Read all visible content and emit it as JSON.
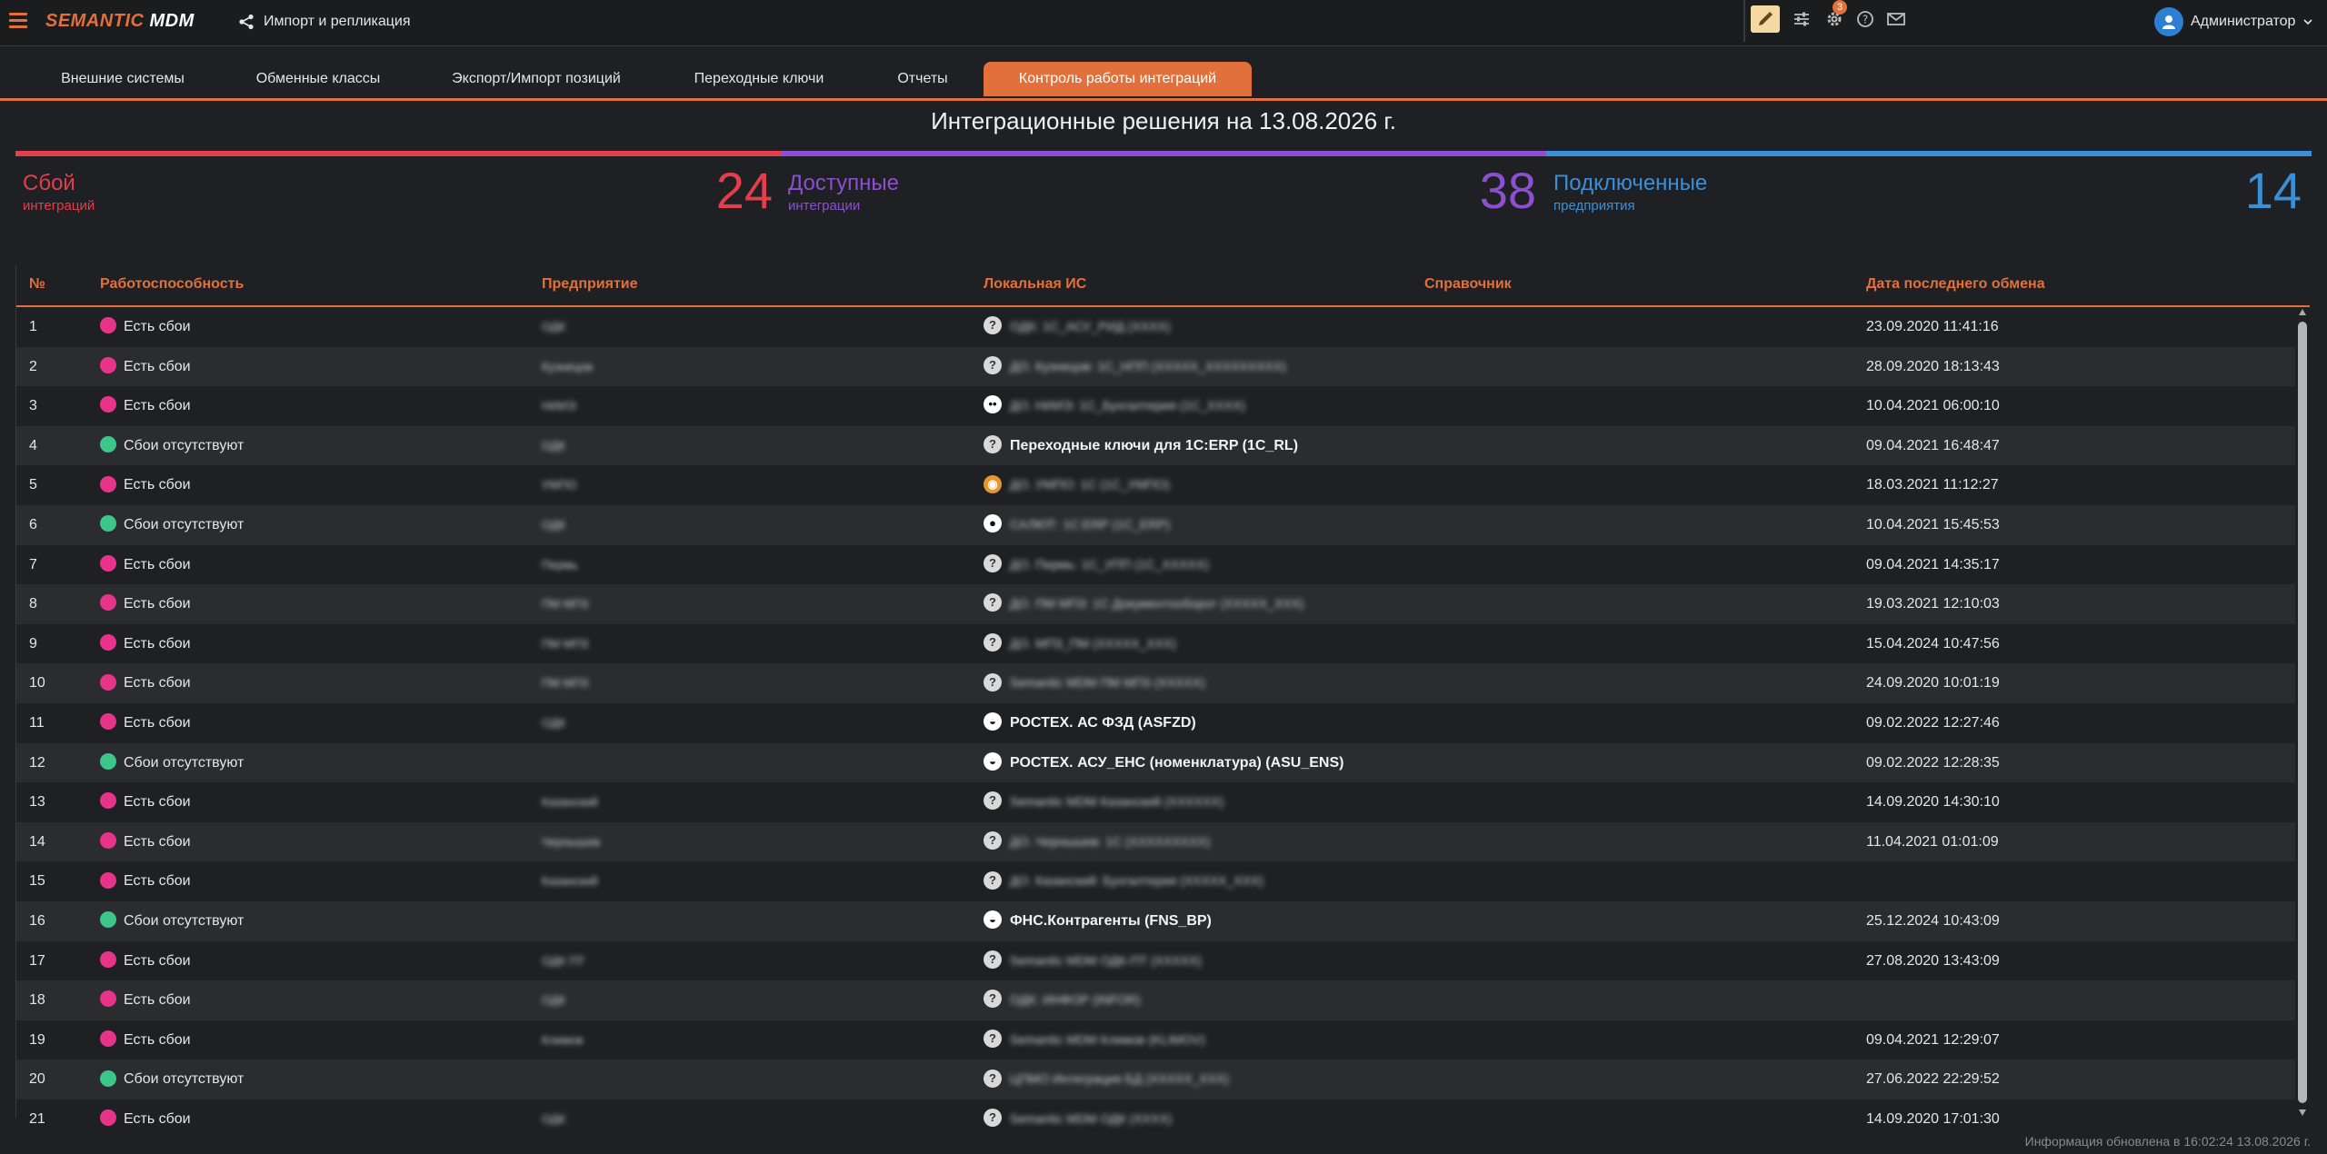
{
  "app": {
    "brand_first": "SEMANTIC",
    "brand_second": "MDM",
    "import_link": "Импорт и репликация",
    "notifications_count": "3",
    "user_name": "Администратор"
  },
  "colors": {
    "accent": "#e2703a",
    "fail": "#e23e4b",
    "available": "#8b4fcf",
    "connected": "#3b8fd6",
    "status_fail_dot": "#e8338a",
    "status_ok_dot": "#3cc68a"
  },
  "tabs": [
    {
      "label": "Внешние системы"
    },
    {
      "label": "Обменные классы"
    },
    {
      "label": "Экспорт/Импорт позиций"
    },
    {
      "label": "Переходные ключи"
    },
    {
      "label": "Отчеты"
    },
    {
      "label": "Контроль работы интеграций"
    }
  ],
  "page_title": "Интеграционные решения на 13.08.2026 г.",
  "kpis": {
    "fail": {
      "label": "Сбой",
      "sub": "интеграций",
      "value": "24"
    },
    "available": {
      "label": "Доступные",
      "sub": "интеграции",
      "value": "38"
    },
    "connected": {
      "label": "Подключенные",
      "sub": "предприятия",
      "value": "14"
    }
  },
  "table": {
    "headers": {
      "num": "№",
      "status": "Работоспособность",
      "enterprise": "Предприятие",
      "local_is": "Локальная ИС",
      "directory": "Справочник",
      "last_exchange": "Дата последнего обмена"
    },
    "rows": [
      {
        "num": "1",
        "status": "Есть сбои",
        "state": "fail",
        "enterprise": "ОДК",
        "is_icon": "question",
        "is": "ОДК: 1С_АСУ_РИД (XXXX)",
        "is_clear": false,
        "date": "23.09.2020 11:41:16"
      },
      {
        "num": "2",
        "status": "Есть сбои",
        "state": "fail",
        "enterprise": "Кузнецов",
        "is_icon": "question",
        "is": "ДО. Кузнецов: 1С_НПП (XXXXX_XXXXXXXXX)",
        "is_clear": false,
        "date": "28.09.2020 18:13:43"
      },
      {
        "num": "3",
        "status": "Есть сбои",
        "state": "fail",
        "enterprise": "НИИЭ",
        "is_icon": "face",
        "is": "ДО. НИИЭ: 1С_Бухгалтерия (1С_XXXX)",
        "is_clear": false,
        "date": "10.04.2021 06:00:10"
      },
      {
        "num": "4",
        "status": "Сбои отсутствуют",
        "state": "ok",
        "enterprise": "ОДК",
        "is_icon": "question",
        "is": "Переходные ключи для 1С:ERP (1C_RL)",
        "is_clear": true,
        "date": "09.04.2021 16:48:47"
      },
      {
        "num": "5",
        "status": "Есть сбои",
        "state": "fail",
        "enterprise": "УМПО",
        "is_icon": "orange",
        "is": "ДО. УМПО: 1С (1С_УМПО)",
        "is_clear": false,
        "date": "18.03.2021 11:12:27"
      },
      {
        "num": "6",
        "status": "Сбои отсутствуют",
        "state": "ok",
        "enterprise": "ОДК",
        "is_icon": "red",
        "is": "САЛЮТ: 1С:ERP (1С_ERP)",
        "is_clear": false,
        "date": "10.04.2021 15:45:53"
      },
      {
        "num": "7",
        "status": "Есть сбои",
        "state": "fail",
        "enterprise": "Пермь",
        "is_icon": "question",
        "is": "ДО. Пермь: 1С_УПП (1С_XXXXX)",
        "is_clear": false,
        "date": "09.04.2021 14:35:17"
      },
      {
        "num": "8",
        "status": "Есть сбои",
        "state": "fail",
        "enterprise": "ПМ МП3",
        "is_icon": "question",
        "is": "ДО. ПМ МП3: 1С Документооборот (XXXXX_XXX)",
        "is_clear": false,
        "date": "19.03.2021 12:10:03"
      },
      {
        "num": "9",
        "status": "Есть сбои",
        "state": "fail",
        "enterprise": "ПМ МП3",
        "is_icon": "question",
        "is": "ДО. МП3_ПМ (XXXXX_XXX)",
        "is_clear": false,
        "date": "15.04.2024 10:47:56"
      },
      {
        "num": "10",
        "status": "Есть сбои",
        "state": "fail",
        "enterprise": "ПМ МП3",
        "is_icon": "question",
        "is": "Semantic MDM ПМ МП3 (XXXXX)",
        "is_clear": false,
        "date": "24.09.2020 10:01:19"
      },
      {
        "num": "11",
        "status": "Есть сбои",
        "state": "fail",
        "enterprise": "ОДК",
        "is_icon": "dark",
        "is": "РОСТЕХ. АС ФЗД (ASFZD)",
        "is_clear": true,
        "date": "09.02.2022 12:27:46"
      },
      {
        "num": "12",
        "status": "Сбои отсутствуют",
        "state": "ok",
        "enterprise": "",
        "is_icon": "dark",
        "is": "РОСТЕХ. АСУ_ЕНС (номенклатура) (ASU_ENS)",
        "is_clear": true,
        "date": "09.02.2022 12:28:35"
      },
      {
        "num": "13",
        "status": "Есть сбои",
        "state": "fail",
        "enterprise": "Казанский",
        "is_icon": "question",
        "is": "Semantic MDM Казанский (XXXXXX)",
        "is_clear": false,
        "date": "14.09.2020 14:30:10"
      },
      {
        "num": "14",
        "status": "Есть сбои",
        "state": "fail",
        "enterprise": "Чернышев",
        "is_icon": "question",
        "is": "ДО. Чернышев: 1С (XXXXXXXXX)",
        "is_clear": false,
        "date": "11.04.2021 01:01:09"
      },
      {
        "num": "15",
        "status": "Есть сбои",
        "state": "fail",
        "enterprise": "Казанский",
        "is_icon": "question",
        "is": "ДО. Казанский: Бухгалтерия (XXXXX_XXX)",
        "is_clear": false,
        "date": ""
      },
      {
        "num": "16",
        "status": "Сбои отсутствуют",
        "state": "ok",
        "enterprise": "",
        "is_icon": "white",
        "is": "ФНС.Контрагенты (FNS_BP)",
        "is_clear": true,
        "date": "25.12.2024 10:43:09"
      },
      {
        "num": "17",
        "status": "Есть сбои",
        "state": "fail",
        "enterprise": "ОДК ПТ",
        "is_icon": "question",
        "is": "Semantic MDM ОДК-ПТ (XXXXX)",
        "is_clear": false,
        "date": "27.08.2020 13:43:09"
      },
      {
        "num": "18",
        "status": "Есть сбои",
        "state": "fail",
        "enterprise": "ОДК",
        "is_icon": "question",
        "is": "ОДК: ИНФОР (INFOR)",
        "is_clear": false,
        "date": ""
      },
      {
        "num": "19",
        "status": "Есть сбои",
        "state": "fail",
        "enterprise": "Климов",
        "is_icon": "question",
        "is": "Semantic MDM Климов (KLIMOV)",
        "is_clear": false,
        "date": "09.04.2021 12:29:07"
      },
      {
        "num": "20",
        "status": "Сбои отсутствуют",
        "state": "ok",
        "enterprise": "",
        "is_icon": "question",
        "is": "ЦПМО Интеграция БД (XXXXX_XXX)",
        "is_clear": false,
        "date": "27.06.2022 22:29:52"
      },
      {
        "num": "21",
        "status": "Есть сбои",
        "state": "fail",
        "enterprise": "ОДК",
        "is_icon": "question",
        "is": "Semantic MDM ОДК (XXXX)",
        "is_clear": false,
        "date": "14.09.2020 17:01:30"
      }
    ]
  },
  "footer": "Информация обновлена в 16:02:24 13.08.2026 г."
}
